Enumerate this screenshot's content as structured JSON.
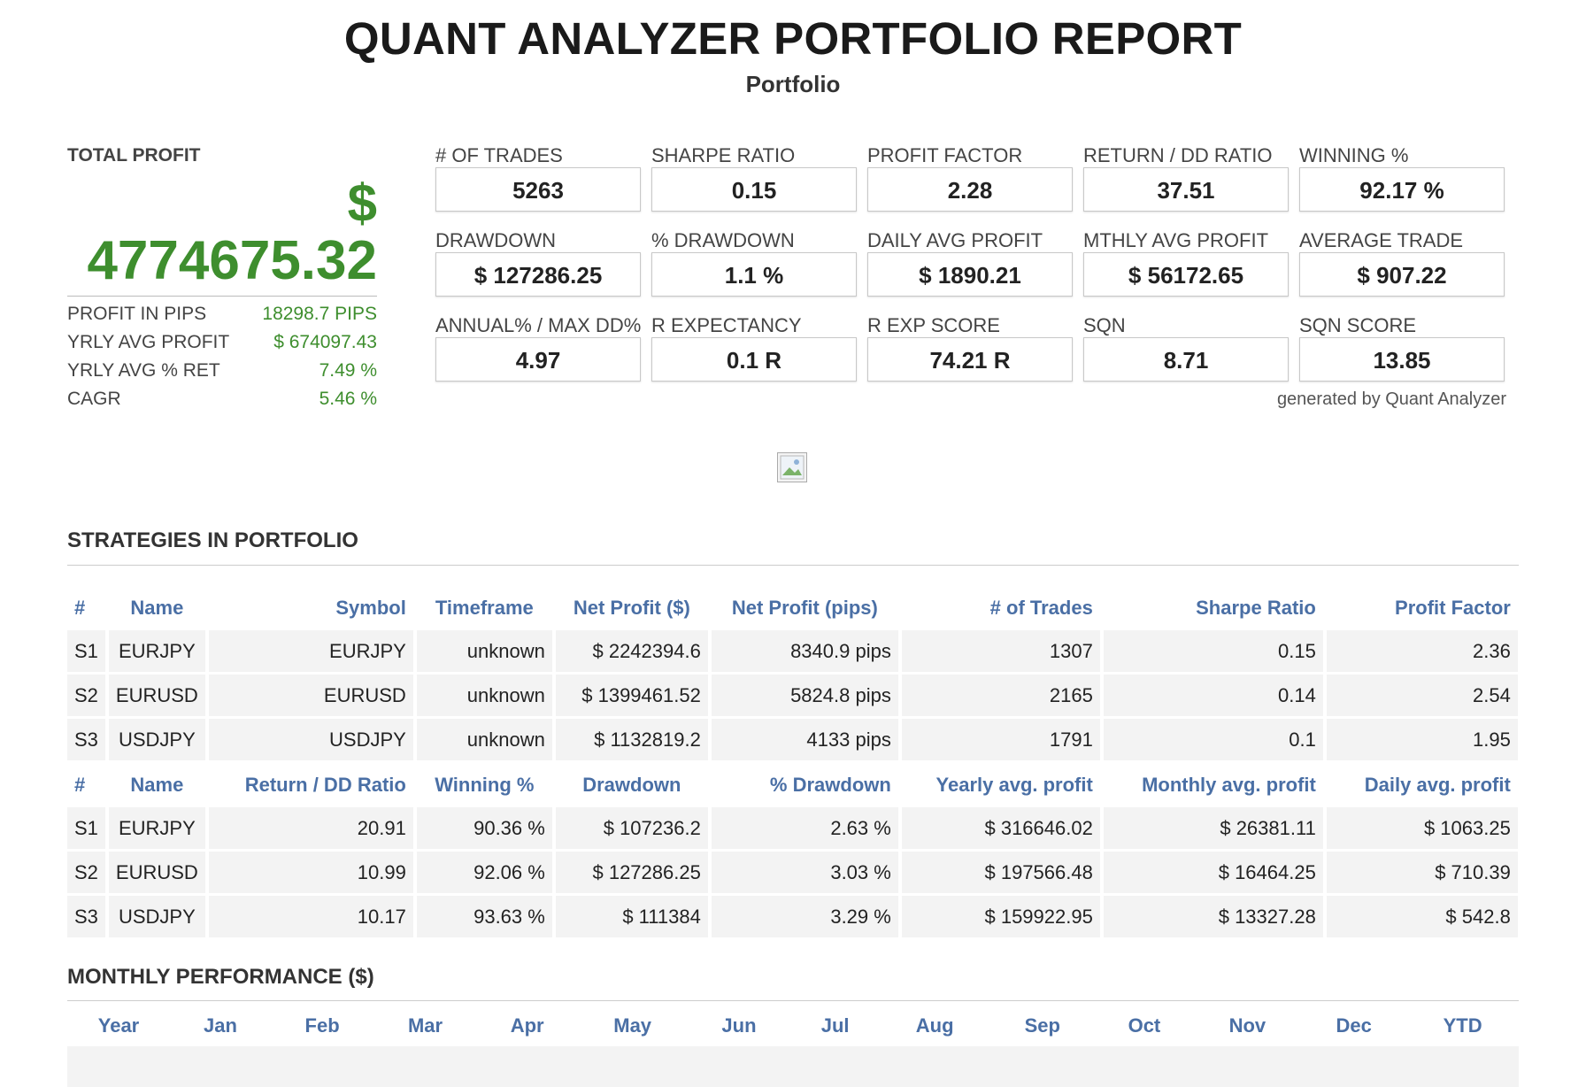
{
  "header": {
    "title": "QUANT ANALYZER PORTFOLIO REPORT",
    "subtitle": "Portfolio"
  },
  "total_profit": {
    "label": "TOTAL PROFIT",
    "currency": "$",
    "value": "4774675.32",
    "rows": [
      {
        "label": "PROFIT IN PIPS",
        "value": "18298.7 PIPS"
      },
      {
        "label": "YRLY AVG PROFIT",
        "value": "$ 674097.43"
      },
      {
        "label": "YRLY AVG % RET",
        "value": "7.49 %"
      },
      {
        "label": "CAGR",
        "value": "5.46 %"
      }
    ]
  },
  "kpis": [
    {
      "label": "# OF TRADES",
      "value": "5263"
    },
    {
      "label": "SHARPE RATIO",
      "value": "0.15"
    },
    {
      "label": "PROFIT FACTOR",
      "value": "2.28"
    },
    {
      "label": "RETURN / DD RATIO",
      "value": "37.51"
    },
    {
      "label": "WINNING %",
      "value": "92.17 %"
    },
    {
      "label": "DRAWDOWN",
      "value": "$ 127286.25"
    },
    {
      "label": "% DRAWDOWN",
      "value": "1.1 %"
    },
    {
      "label": "DAILY AVG PROFIT",
      "value": "$ 1890.21"
    },
    {
      "label": "MTHLY AVG PROFIT",
      "value": "$ 56172.65"
    },
    {
      "label": "AVERAGE TRADE",
      "value": "$ 907.22"
    },
    {
      "label": "ANNUAL% / MAX DD%",
      "value": "4.97"
    },
    {
      "label": "R EXPECTANCY",
      "value": "0.1 R"
    },
    {
      "label": "R EXP SCORE",
      "value": "74.21 R"
    },
    {
      "label": "SQN",
      "value": "8.71"
    },
    {
      "label": "SQN SCORE",
      "value": "13.85"
    }
  ],
  "generated_by": "generated by Quant Analyzer",
  "strategies": {
    "title": "STRATEGIES IN PORTFOLIO",
    "headers1": [
      "#",
      "Name",
      "Symbol",
      "Timeframe",
      "Net Profit ($)",
      "Net Profit (pips)",
      "# of Trades",
      "Sharpe Ratio",
      "Profit Factor"
    ],
    "rows1": [
      [
        "S1",
        "EURJPY",
        "EURJPY",
        "unknown",
        "$ 2242394.6",
        "8340.9 pips",
        "1307",
        "0.15",
        "2.36"
      ],
      [
        "S2",
        "EURUSD",
        "EURUSD",
        "unknown",
        "$ 1399461.52",
        "5824.8 pips",
        "2165",
        "0.14",
        "2.54"
      ],
      [
        "S3",
        "USDJPY",
        "USDJPY",
        "unknown",
        "$ 1132819.2",
        "4133 pips",
        "1791",
        "0.1",
        "1.95"
      ]
    ],
    "headers2": [
      "#",
      "Name",
      "Return / DD Ratio",
      "Winning %",
      "Drawdown",
      "% Drawdown",
      "Yearly avg. profit",
      "Monthly avg. profit",
      "Daily avg. profit"
    ],
    "rows2": [
      [
        "S1",
        "EURJPY",
        "20.91",
        "90.36 %",
        "$ 107236.2",
        "2.63 %",
        "$ 316646.02",
        "$ 26381.11",
        "$ 1063.25"
      ],
      [
        "S2",
        "EURUSD",
        "10.99",
        "92.06 %",
        "$ 127286.25",
        "3.03 %",
        "$ 197566.48",
        "$ 16464.25",
        "$ 710.39"
      ],
      [
        "S3",
        "USDJPY",
        "10.17",
        "93.63 %",
        "$ 111384",
        "3.29 %",
        "$ 159922.95",
        "$ 13327.28",
        "$ 542.8"
      ]
    ]
  },
  "monthly": {
    "title": "MONTHLY PERFORMANCE ($)",
    "headers": [
      "Year",
      "Jan",
      "Feb",
      "Mar",
      "Apr",
      "May",
      "Jun",
      "Jul",
      "Aug",
      "Sep",
      "Oct",
      "Nov",
      "Dec",
      "YTD"
    ]
  }
}
